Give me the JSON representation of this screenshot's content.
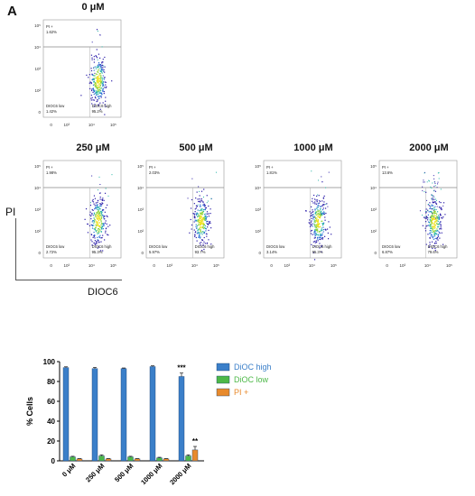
{
  "panel_label": "A",
  "flow": {
    "y_axis_label": "PI",
    "x_axis_label": "DIOC6",
    "y_ticks": [
      "10⁵",
      "10⁴",
      "10³",
      "10²",
      "0"
    ],
    "x_ticks": [
      "0",
      "10³",
      "10⁴",
      "10⁵"
    ],
    "plots": [
      {
        "title": "0 μM",
        "pi_label": "PI +",
        "pi_pct": "1.62%",
        "low_label": "DIOC6 low",
        "low_pct": "1.42%",
        "high_label": "DIOC6 high",
        "high_pct": "95.2%"
      },
      {
        "title": "250 μM",
        "pi_label": "PI +",
        "pi_pct": "1.98%",
        "low_label": "DIOC6 low",
        "low_pct": "2.72%",
        "high_label": "DIOC6 high",
        "high_pct": "95.3%"
      },
      {
        "title": "500 μM",
        "pi_label": "PI +",
        "pi_pct": "2.03%",
        "low_label": "DIOC6 low",
        "low_pct": "5.97%",
        "high_label": "DIOC6 high",
        "high_pct": "93.7%"
      },
      {
        "title": "1000 μM",
        "pi_label": "PI +",
        "pi_pct": "1.81%",
        "low_label": "DIOC6 low",
        "low_pct": "3.14%",
        "high_label": "DIOC6 high",
        "high_pct": "95.3%"
      },
      {
        "title": "2000 μM",
        "pi_label": "PI +",
        "pi_pct": "13.6%",
        "low_label": "DIOC6 low",
        "low_pct": "6.87%",
        "high_label": "DIOC6 high",
        "high_pct": "79.6%"
      }
    ]
  },
  "chart_data": {
    "type": "bar",
    "ylabel": "% Cells",
    "ylim": [
      0,
      100
    ],
    "yticks": [
      "0",
      "20",
      "40",
      "60",
      "80",
      "100"
    ],
    "categories": [
      "0 μM",
      "250 μM",
      "500 μM",
      "1000 μM",
      "2000 μM"
    ],
    "series": [
      {
        "name": "DiOC high",
        "color": "#3b7fc9",
        "values": [
          94,
          93,
          93,
          95,
          85
        ],
        "errors": [
          0.8,
          1.2,
          0.6,
          0.8,
          3.5
        ]
      },
      {
        "name": "DiOC low",
        "color": "#4db848",
        "values": [
          4,
          5,
          4,
          3,
          5
        ],
        "errors": [
          0.6,
          1.0,
          0.6,
          0.6,
          1.0
        ]
      },
      {
        "name": "PI +",
        "color": "#e88a2c",
        "values": [
          2,
          2,
          2,
          2,
          11
        ],
        "errors": [
          0.3,
          0.3,
          0.3,
          0.3,
          3.5
        ]
      }
    ],
    "annotations": [
      {
        "text": "***",
        "category": "2000 μM",
        "series": "DiOC high"
      },
      {
        "text": "**",
        "category": "2000 μM",
        "series": "PI +"
      }
    ],
    "legend_position": "top-right"
  }
}
